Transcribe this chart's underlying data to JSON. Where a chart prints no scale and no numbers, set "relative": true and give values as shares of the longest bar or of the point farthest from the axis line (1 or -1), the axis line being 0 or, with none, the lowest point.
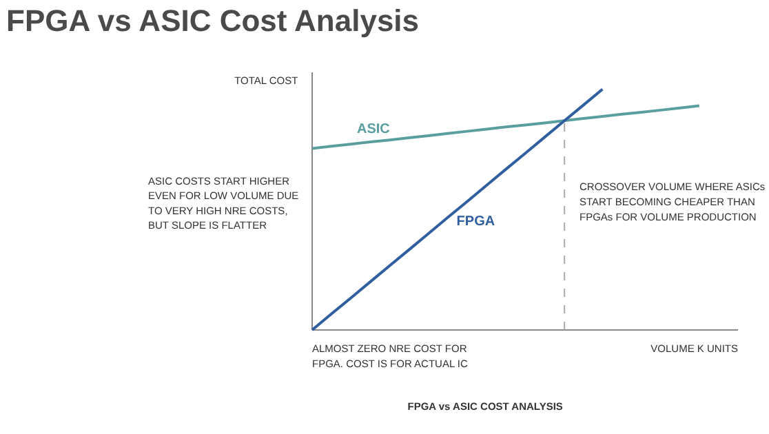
{
  "chart_data": {
    "type": "line",
    "title": "FPGA vs ASIC Cost Analysis",
    "relative": true,
    "xlabel": "VOLUME K UNITS",
    "ylabel": "TOTAL COST",
    "grid": false,
    "categories": [
      null,
      null,
      null,
      null,
      null,
      null,
      null,
      null,
      null,
      null,
      null,
      null,
      null,
      null,
      null,
      null,
      null,
      null,
      null,
      null,
      null,
      null,
      null
    ],
    "series": [
      {
        "name": "ASIC",
        "color": "#5a9ea0",
        "values": [
          0.754,
          0.763,
          0.772,
          0.781,
          0.789,
          0.798,
          0.807,
          0.816,
          0.825,
          0.834,
          0.843,
          0.851,
          0.86,
          0.869,
          0.878,
          0.887,
          0.896,
          0.904,
          0.913,
          0.922,
          0.931,
          null,
          null
        ]
      },
      {
        "name": "FPGA",
        "color": "#2f5f9e",
        "values": [
          0,
          0.067,
          0.133,
          0.2,
          0.267,
          0.333,
          0.4,
          0.467,
          0.533,
          0.6,
          0.667,
          0.733,
          0.8,
          0.867,
          0.933,
          1,
          null,
          null,
          null,
          null,
          null,
          null,
          null
        ]
      }
    ],
    "annotations": [
      "ASIC COSTS START HIGHER\nEVEN FOR LOW VOLUME DUE\nTO VERY HIGH NRE COSTS,\nBUT SLOPE IS FLATTER",
      "ALMOST ZERO NRE COST FOR\nFPGA. COST IS FOR ACTUAL IC",
      "FPGA vs ASIC COST ANALYSIS",
      "CROSSOVER VOLUME WHERE ASICs\nSTART BECOMING CHEAPER THAN\nFPGAs FOR VOLUME PRODUCTION"
    ]
  }
}
